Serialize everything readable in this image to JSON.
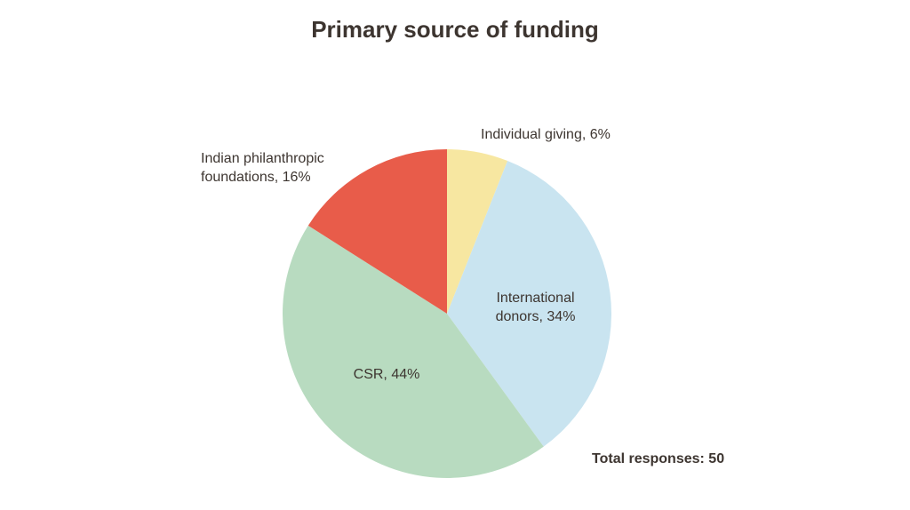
{
  "chart_data": {
    "type": "pie",
    "title": "Primary source of funding",
    "values": [
      6,
      34,
      44,
      16
    ],
    "value_labels": [
      "Individual giving, 6%",
      "International donors, 34%",
      "CSR, 44%",
      "Indian philanthropic foundations, 16%"
    ],
    "colors": [
      "#f7e7a1",
      "#c9e4f0",
      "#b8dbc0",
      "#e85c4a"
    ],
    "annotation": "Total responses: 50"
  }
}
